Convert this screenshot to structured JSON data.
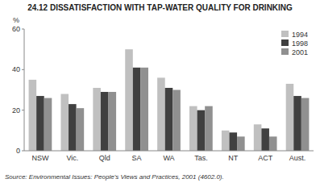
{
  "chart_data": {
    "type": "bar",
    "title": "24.12   DISSATISFACTION WITH TAP-WATER QUALITY FOR DRINKING",
    "ylabel": "%",
    "source": "Source: Environmental Issues: People's Views and Practices, 2001 (4602.0).",
    "categories": [
      "NSW",
      "Vic.",
      "Qld",
      "SA",
      "WA",
      "Tas.",
      "NT",
      "ACT",
      "Aust."
    ],
    "series": [
      {
        "name": "1994",
        "color": "#c0c0c0",
        "values": [
          35,
          28,
          31,
          50,
          36,
          22,
          10,
          13,
          33
        ]
      },
      {
        "name": "1998",
        "color": "#404040",
        "values": [
          27,
          23,
          29,
          41,
          31,
          20,
          9,
          11,
          27
        ]
      },
      {
        "name": "2001",
        "color": "#909090",
        "values": [
          26,
          21,
          29,
          41,
          30,
          22,
          7,
          7,
          26
        ]
      }
    ],
    "ylim": [
      0,
      60
    ],
    "yticks": [
      0,
      20,
      40,
      60
    ],
    "grid": false,
    "legend": "upper right"
  }
}
